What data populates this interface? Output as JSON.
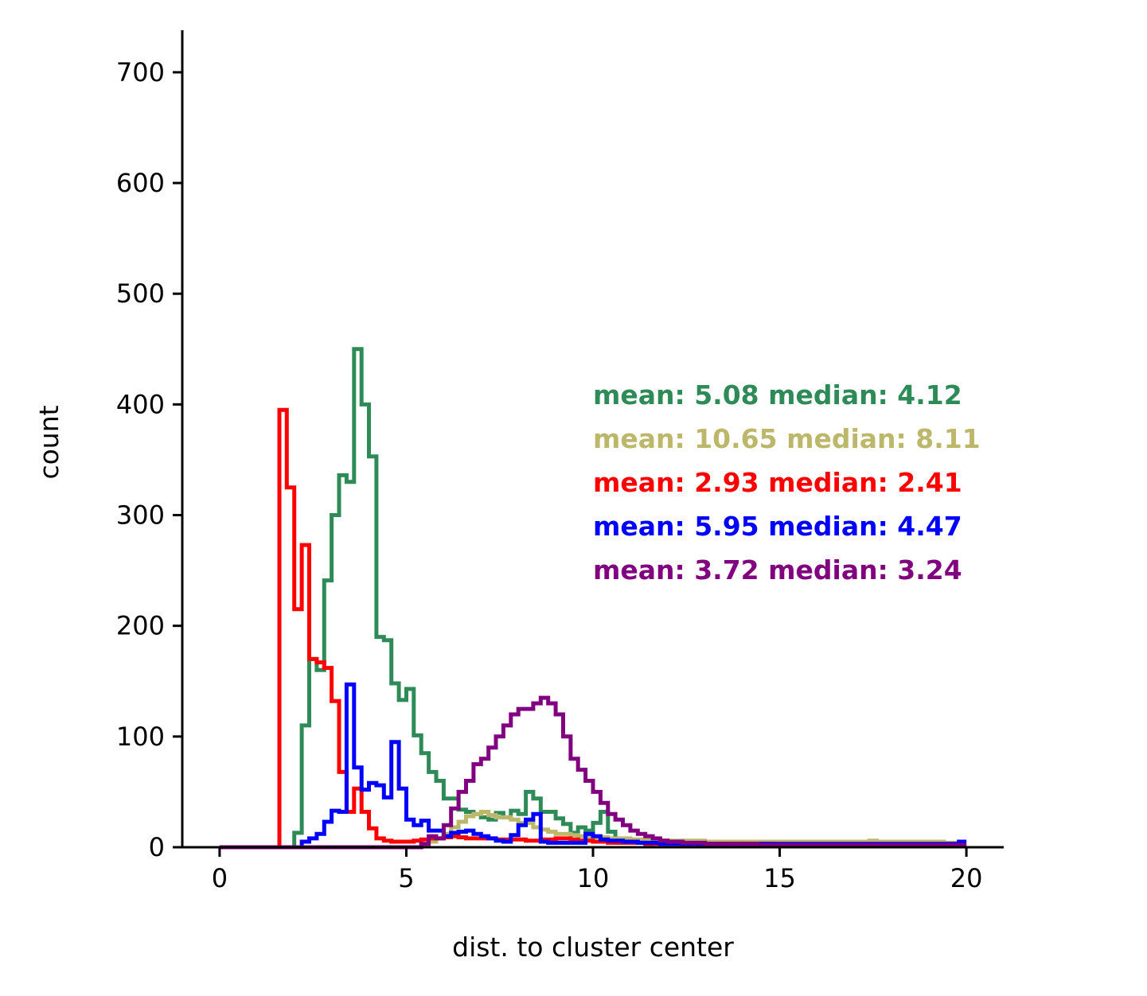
{
  "chart_data": {
    "type": "histogram-step",
    "title": "",
    "xlabel": "dist. to cluster center",
    "ylabel": "count",
    "xlim": [
      -1,
      21
    ],
    "ylim": [
      0,
      738
    ],
    "xticks": [
      0,
      5,
      10,
      15,
      20
    ],
    "yticks": [
      0,
      100,
      200,
      300,
      400,
      500,
      600,
      700
    ],
    "grid": false,
    "bin_width": 0.2,
    "bins_start": 0,
    "series": [
      {
        "color": "#2e8b57",
        "annotation": "mean: 5.08 median: 4.12",
        "values": [
          0,
          0,
          0,
          0,
          0,
          0,
          0,
          0,
          0,
          0,
          13,
          110,
          170,
          160,
          241,
          300,
          336,
          330,
          450,
          400,
          353,
          190,
          187,
          148,
          133,
          143,
          101,
          85,
          68,
          60,
          44,
          44,
          34,
          32,
          30,
          27,
          25,
          31,
          27,
          33,
          30,
          50,
          44,
          32,
          32,
          26,
          21,
          13,
          18,
          15,
          22,
          32,
          14,
          4,
          4,
          4,
          4,
          3,
          4,
          6,
          5,
          4,
          3,
          4,
          3,
          3,
          3,
          2,
          3,
          3,
          2,
          2,
          3,
          2,
          3,
          2,
          2,
          2,
          2,
          2,
          1,
          1,
          1,
          1,
          1,
          1,
          1,
          1,
          1,
          1,
          1,
          1,
          1,
          1,
          1,
          1,
          1,
          1,
          1,
          1
        ]
      },
      {
        "color": "#bdb76b",
        "annotation": "mean: 10.65 median: 8.11",
        "values": [
          0,
          0,
          0,
          0,
          0,
          0,
          0,
          0,
          0,
          0,
          0,
          0,
          0,
          0,
          0,
          0,
          0,
          0,
          0,
          0,
          0,
          0,
          0,
          0,
          0,
          0,
          0,
          2,
          5,
          8,
          12,
          18,
          23,
          28,
          30,
          32,
          29,
          27,
          27,
          25,
          22,
          22,
          18,
          16,
          14,
          12,
          12,
          11,
          10,
          9,
          9,
          9,
          8,
          8,
          8,
          7,
          7,
          7,
          7,
          6,
          6,
          6,
          6,
          6,
          6,
          5,
          5,
          5,
          5,
          5,
          5,
          5,
          5,
          5,
          5,
          5,
          5,
          5,
          5,
          5,
          5,
          5,
          5,
          5,
          5,
          5,
          5,
          6,
          5,
          5,
          5,
          5,
          5,
          5,
          5,
          5,
          5,
          4,
          4,
          5
        ]
      },
      {
        "color": "#ff0000",
        "annotation": "mean: 2.93 median: 2.41",
        "values": [
          0,
          0,
          0,
          0,
          0,
          0,
          0,
          0,
          395,
          325,
          215,
          273,
          170,
          167,
          162,
          132,
          68,
          32,
          53,
          32,
          17,
          8,
          6,
          5,
          5,
          5,
          6,
          7,
          8,
          8,
          9,
          10,
          9,
          8,
          8,
          8,
          8,
          7,
          7,
          7,
          7,
          6,
          6,
          7,
          7,
          8,
          8,
          7,
          6,
          6,
          5,
          5,
          4,
          4,
          4,
          4,
          4,
          3,
          3,
          3,
          3,
          3,
          3,
          3,
          3,
          3,
          3,
          3,
          3,
          3,
          3,
          3,
          3,
          3,
          2,
          2,
          2,
          2,
          2,
          2,
          2,
          2,
          2,
          2,
          2,
          2,
          2,
          2,
          2,
          2,
          2,
          2,
          2,
          2,
          2,
          2,
          2,
          2,
          2,
          2
        ]
      },
      {
        "color": "#0000ff",
        "annotation": "mean: 5.95 median: 4.47",
        "values": [
          0,
          0,
          0,
          0,
          0,
          0,
          0,
          0,
          0,
          0,
          0,
          5,
          8,
          12,
          23,
          33,
          32,
          147,
          72,
          52,
          58,
          56,
          45,
          95,
          53,
          25,
          20,
          24,
          15,
          15,
          10,
          13,
          14,
          15,
          12,
          10,
          8,
          6,
          5,
          11,
          20,
          25,
          30,
          5,
          4,
          4,
          4,
          4,
          4,
          12,
          10,
          7,
          6,
          6,
          5,
          5,
          4,
          4,
          4,
          3,
          3,
          3,
          3,
          3,
          3,
          3,
          3,
          3,
          3,
          3,
          3,
          3,
          3,
          3,
          3,
          3,
          3,
          3,
          3,
          3,
          3,
          3,
          3,
          3,
          3,
          3,
          3,
          3,
          3,
          3,
          3,
          3,
          3,
          3,
          3,
          3,
          3,
          3,
          3,
          5
        ]
      },
      {
        "color": "#800080",
        "annotation": "mean: 3.72 median: 3.24",
        "values": [
          0,
          0,
          0,
          0,
          0,
          0,
          0,
          0,
          0,
          0,
          0,
          0,
          0,
          0,
          0,
          0,
          0,
          0,
          0,
          0,
          0,
          0,
          0,
          0,
          0,
          0,
          0,
          3,
          10,
          8,
          20,
          35,
          50,
          60,
          75,
          80,
          90,
          100,
          110,
          120,
          125,
          125,
          130,
          135,
          130,
          120,
          100,
          80,
          70,
          60,
          50,
          40,
          30,
          25,
          20,
          15,
          12,
          10,
          8,
          6,
          5,
          5,
          4,
          4,
          4,
          3,
          3,
          3,
          3,
          3,
          3,
          3,
          2,
          2,
          2,
          2,
          2,
          2,
          2,
          2,
          2,
          2,
          2,
          2,
          2,
          2,
          2,
          2,
          2,
          2,
          2,
          2,
          2,
          2,
          2,
          2,
          2,
          2,
          2,
          2
        ]
      }
    ]
  }
}
